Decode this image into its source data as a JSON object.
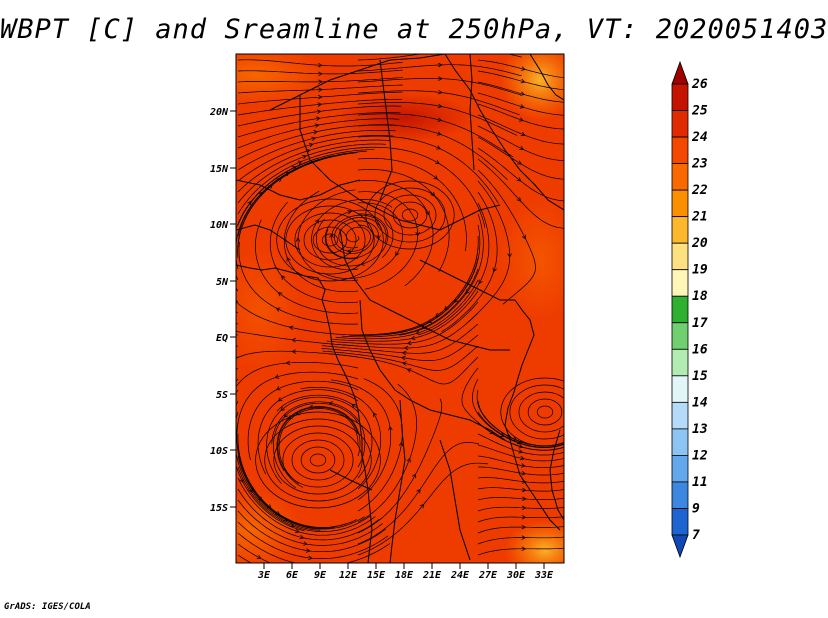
{
  "title": "WBPT [C] and Sreamline at 250hPa, VT: 2020051403",
  "footer": "GrADS: IGES/COLA",
  "map": {
    "lat_labels": [
      "20N",
      "15N",
      "10N",
      "5N",
      "EQ",
      "5S",
      "10S",
      "15S"
    ],
    "lon_labels": [
      "3E",
      "6E",
      "9E",
      "12E",
      "15E",
      "18E",
      "21E",
      "24E",
      "27E",
      "30E",
      "33E"
    ],
    "field_range_c": [
      22,
      25
    ]
  },
  "colorbar": {
    "levels": [
      "26",
      "25",
      "24",
      "23",
      "22",
      "21",
      "20",
      "19",
      "18",
      "17",
      "16",
      "15",
      "14",
      "13",
      "12",
      "11",
      "9",
      "7"
    ],
    "colors": [
      "#a00000",
      "#c41400",
      "#e02a00",
      "#f24800",
      "#f86a00",
      "#fa9000",
      "#fbb82c",
      "#fde080",
      "#fff7b8",
      "#30b030",
      "#70d070",
      "#b2ecb2",
      "#e2f6f8",
      "#b4dcf8",
      "#8cc4f4",
      "#64a8ec",
      "#3c88e0",
      "#1e64d0",
      "#1048b8"
    ]
  }
}
